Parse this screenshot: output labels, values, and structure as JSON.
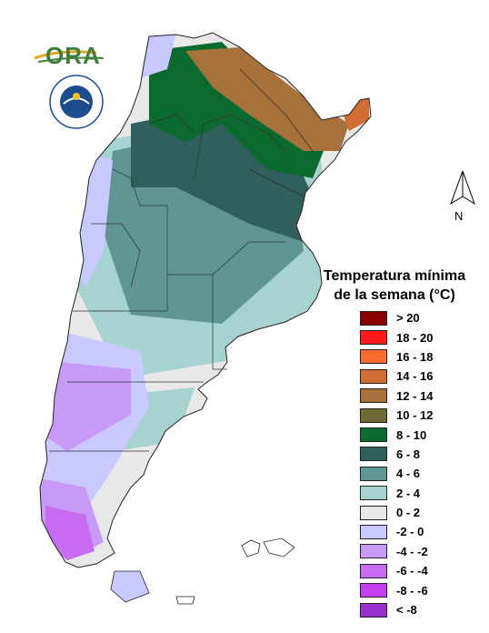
{
  "logo": {
    "text": "ORA"
  },
  "north_arrow": {
    "label": "N"
  },
  "legend": {
    "title_line1": "Temperatura mínima",
    "title_line2": "de la semana (°C)",
    "items": [
      {
        "label": "> 20",
        "color": "#8b0000"
      },
      {
        "label": "18 - 20",
        "color": "#ff1a1a"
      },
      {
        "label": "16 - 18",
        "color": "#ff6a33"
      },
      {
        "label": "14 - 16",
        "color": "#cf6d33"
      },
      {
        "label": "12 - 14",
        "color": "#a7713c"
      },
      {
        "label": "10 - 12",
        "color": "#6f6a35"
      },
      {
        "label": "8 - 10",
        "color": "#0b6a2e"
      },
      {
        "label": "6 - 8",
        "color": "#2f605b"
      },
      {
        "label": "4 - 6",
        "color": "#5f9693"
      },
      {
        "label": "2 - 4",
        "color": "#a6d3cf"
      },
      {
        "label": "0 - 2",
        "color": "#e8e8e8"
      },
      {
        "label": "-2 - 0",
        "color": "#c9c9ff"
      },
      {
        "label": "-4 - -2",
        "color": "#c79af7"
      },
      {
        "label": "-6 - -4",
        "color": "#c76cf0"
      },
      {
        "label": "-8 - -6",
        "color": "#c53ff0"
      },
      {
        "label": "< -8",
        "color": "#9a2fd0"
      }
    ]
  }
}
